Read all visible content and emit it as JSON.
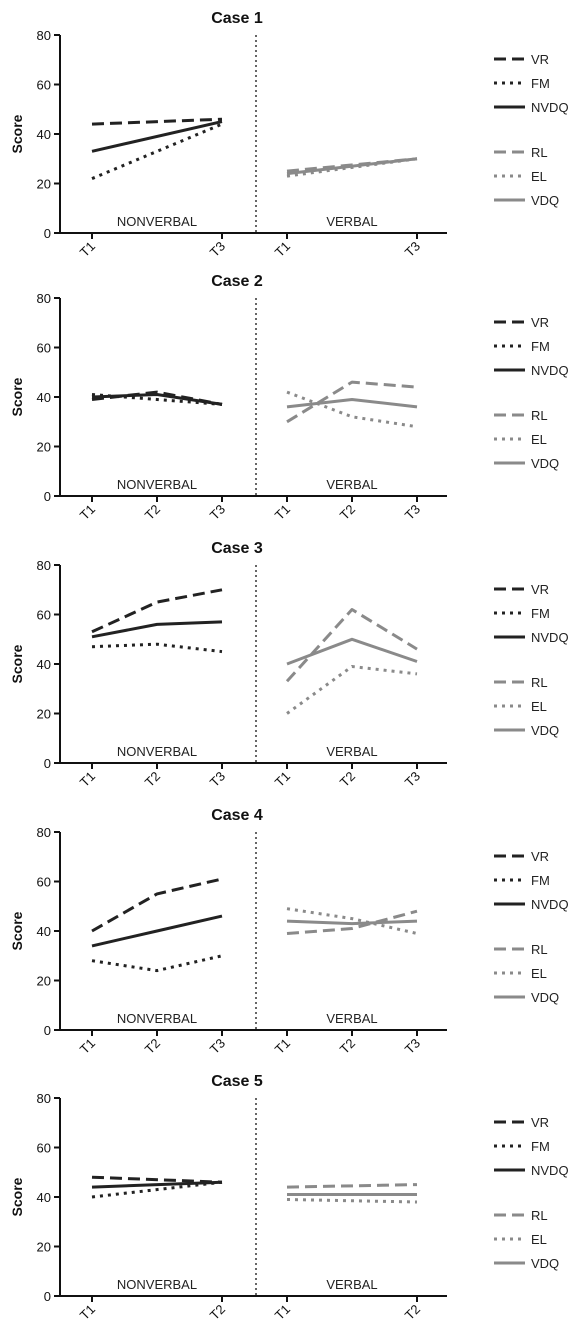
{
  "styles": {
    "VR": {
      "color": "#222222",
      "dash": "12,6",
      "width": 3
    },
    "FM": {
      "color": "#222222",
      "dash": "3,5",
      "width": 3
    },
    "NVDQ": {
      "color": "#222222",
      "dash": "",
      "width": 3
    },
    "RL": {
      "color": "#8a8a8a",
      "dash": "12,6",
      "width": 3
    },
    "EL": {
      "color": "#8a8a8a",
      "dash": "3,5",
      "width": 3
    },
    "VDQ": {
      "color": "#8a8a8a",
      "dash": "",
      "width": 3
    }
  },
  "legend": {
    "nonverbal": [
      "VR",
      "FM",
      "NVDQ"
    ],
    "verbal": [
      "RL",
      "EL",
      "VDQ"
    ]
  },
  "chart_data": [
    {
      "type": "line",
      "title": "Case 1",
      "ylabel": "Score",
      "ylim": [
        0,
        80
      ],
      "yticks": [
        0,
        20,
        40,
        60,
        80
      ],
      "region_labels": [
        "NONVERBAL",
        "VERBAL"
      ],
      "nonverbal": {
        "x": [
          "T1",
          "T3"
        ],
        "series": [
          {
            "name": "VR",
            "values": [
              44,
              46
            ]
          },
          {
            "name": "FM",
            "values": [
              22,
              44
            ]
          },
          {
            "name": "NVDQ",
            "values": [
              33,
              45
            ]
          }
        ]
      },
      "verbal": {
        "x": [
          "T1",
          "T3"
        ],
        "series": [
          {
            "name": "RL",
            "values": [
              25,
              30
            ]
          },
          {
            "name": "EL",
            "values": [
              23,
              30
            ]
          },
          {
            "name": "VDQ",
            "values": [
              24,
              30
            ]
          }
        ]
      }
    },
    {
      "type": "line",
      "title": "Case 2",
      "ylabel": "Score",
      "ylim": [
        0,
        80
      ],
      "yticks": [
        0,
        20,
        40,
        60,
        80
      ],
      "region_labels": [
        "NONVERBAL",
        "VERBAL"
      ],
      "nonverbal": {
        "x": [
          "T1",
          "T2",
          "T3"
        ],
        "series": [
          {
            "name": "VR",
            "values": [
              39,
              42,
              37
            ]
          },
          {
            "name": "FM",
            "values": [
              41,
              39,
              37
            ]
          },
          {
            "name": "NVDQ",
            "values": [
              40,
              41,
              37
            ]
          }
        ]
      },
      "verbal": {
        "x": [
          "T1",
          "T2",
          "T3"
        ],
        "series": [
          {
            "name": "RL",
            "values": [
              30,
              46,
              44
            ]
          },
          {
            "name": "EL",
            "values": [
              42,
              32,
              28
            ]
          },
          {
            "name": "VDQ",
            "values": [
              36,
              39,
              36
            ]
          }
        ]
      }
    },
    {
      "type": "line",
      "title": "Case 3",
      "ylabel": "Score",
      "ylim": [
        0,
        80
      ],
      "yticks": [
        0,
        20,
        40,
        60,
        80
      ],
      "region_labels": [
        "NONVERBAL",
        "VERBAL"
      ],
      "nonverbal": {
        "x": [
          "T1",
          "T2",
          "T3"
        ],
        "series": [
          {
            "name": "VR",
            "values": [
              53,
              65,
              70
            ]
          },
          {
            "name": "FM",
            "values": [
              47,
              48,
              45
            ]
          },
          {
            "name": "NVDQ",
            "values": [
              51,
              56,
              57
            ]
          }
        ]
      },
      "verbal": {
        "x": [
          "T1",
          "T2",
          "T3"
        ],
        "series": [
          {
            "name": "RL",
            "values": [
              33,
              62,
              46
            ]
          },
          {
            "name": "EL",
            "values": [
              20,
              39,
              36
            ]
          },
          {
            "name": "VDQ",
            "values": [
              40,
              50,
              41
            ]
          }
        ]
      }
    },
    {
      "type": "line",
      "title": "Case 4",
      "ylabel": "Score",
      "ylim": [
        0,
        80
      ],
      "yticks": [
        0,
        20,
        40,
        60,
        80
      ],
      "region_labels": [
        "NONVERBAL",
        "VERBAL"
      ],
      "nonverbal": {
        "x": [
          "T1",
          "T2",
          "T3"
        ],
        "series": [
          {
            "name": "VR",
            "values": [
              40,
              55,
              61
            ]
          },
          {
            "name": "FM",
            "values": [
              28,
              24,
              30
            ]
          },
          {
            "name": "NVDQ",
            "values": [
              34,
              40,
              46
            ]
          }
        ]
      },
      "verbal": {
        "x": [
          "T1",
          "T2",
          "T3"
        ],
        "series": [
          {
            "name": "RL",
            "values": [
              39,
              41,
              48
            ]
          },
          {
            "name": "EL",
            "values": [
              49,
              45,
              39
            ]
          },
          {
            "name": "VDQ",
            "values": [
              44,
              43,
              44
            ]
          }
        ]
      }
    },
    {
      "type": "line",
      "title": "Case 5",
      "ylabel": "Score",
      "ylim": [
        0,
        80
      ],
      "yticks": [
        0,
        20,
        40,
        60,
        80
      ],
      "region_labels": [
        "NONVERBAL",
        "VERBAL"
      ],
      "nonverbal": {
        "x": [
          "T1",
          "T2"
        ],
        "series": [
          {
            "name": "VR",
            "values": [
              48,
              46
            ]
          },
          {
            "name": "FM",
            "values": [
              40,
              46
            ]
          },
          {
            "name": "NVDQ",
            "values": [
              44,
              46
            ]
          }
        ]
      },
      "verbal": {
        "x": [
          "T1",
          "T2"
        ],
        "series": [
          {
            "name": "RL",
            "values": [
              44,
              45
            ]
          },
          {
            "name": "EL",
            "values": [
              39,
              38
            ]
          },
          {
            "name": "VDQ",
            "values": [
              41,
              41
            ]
          }
        ]
      }
    }
  ]
}
